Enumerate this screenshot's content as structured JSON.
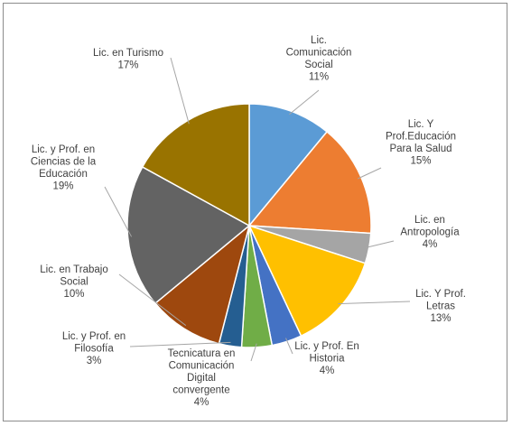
{
  "chart_data": {
    "type": "pie",
    "title": "",
    "legend": "none",
    "start_angle_deg": 0,
    "direction": "clockwise",
    "slices": [
      {
        "label": [
          "Lic.",
          "Comunicación",
          "Social"
        ],
        "value": 11,
        "percent_label": "11%",
        "color": "#5b9bd5"
      },
      {
        "label": [
          "Lic. Y",
          "Prof.Educación",
          "Para la Salud"
        ],
        "value": 15,
        "percent_label": "15%",
        "color": "#ed7d31"
      },
      {
        "label": [
          "Lic. en",
          "Antropología"
        ],
        "value": 4,
        "percent_label": "4%",
        "color": "#a5a5a5"
      },
      {
        "label": [
          "Lic. Y Prof.",
          "Letras"
        ],
        "value": 13,
        "percent_label": "13%",
        "color": "#ffc000"
      },
      {
        "label": [
          "Lic. y Prof. En",
          "Historia"
        ],
        "value": 4,
        "percent_label": "4%",
        "color": "#4472c4"
      },
      {
        "label": [
          "Tecnicatura en",
          "Comunicación",
          "Digital",
          "convergente"
        ],
        "value": 4,
        "percent_label": "4%",
        "color": "#70ad47"
      },
      {
        "label": [
          "Lic. y Prof. en",
          "Filosofía"
        ],
        "value": 3,
        "percent_label": "3%",
        "color": "#255e91"
      },
      {
        "label": [
          "Lic. en Trabajo",
          "Social"
        ],
        "value": 10,
        "percent_label": "10%",
        "color": "#9e480e"
      },
      {
        "label": [
          "Lic. y Prof. en",
          "Ciencias de la",
          "Educación"
        ],
        "value": 19,
        "percent_label": "19%",
        "color": "#636363"
      },
      {
        "label": [
          "Lic. en Turismo"
        ],
        "value": 17,
        "percent_label": "17%",
        "color": "#997300"
      }
    ]
  }
}
